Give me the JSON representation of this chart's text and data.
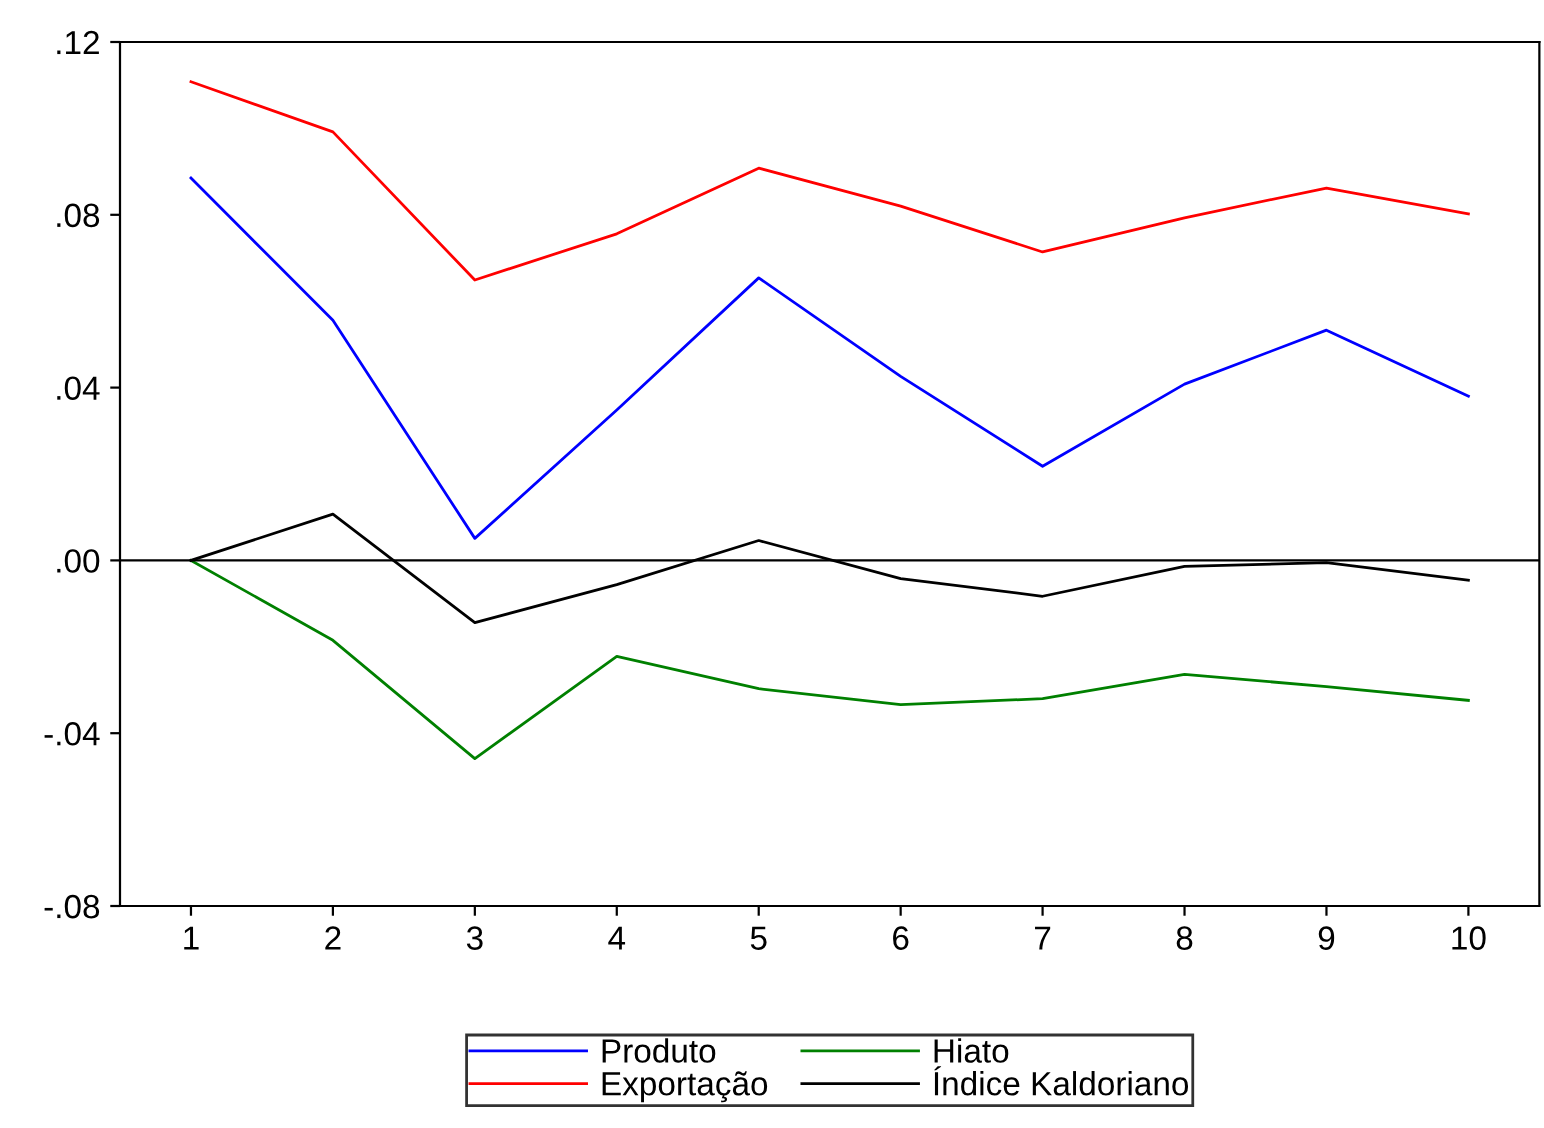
{
  "chart_data": {
    "type": "line",
    "x": [
      1,
      2,
      3,
      4,
      5,
      6,
      7,
      8,
      9,
      10
    ],
    "series": [
      {
        "name": "Produto",
        "color": "#0000ff",
        "values": [
          0.0885,
          0.0556,
          0.0051,
          0.0348,
          0.0654,
          0.0426,
          0.0218,
          0.0408,
          0.0533,
          0.038
        ]
      },
      {
        "name": "Exportação",
        "color": "#ff0000",
        "values": [
          0.1108,
          0.0992,
          0.0649,
          0.0756,
          0.0908,
          0.082,
          0.0714,
          0.0793,
          0.0862,
          0.0802
        ]
      },
      {
        "name": "Hiato",
        "color": "#008000",
        "values": [
          0.0,
          -0.0185,
          -0.0459,
          -0.0222,
          -0.0297,
          -0.0334,
          -0.032,
          -0.0264,
          -0.0292,
          -0.0324
        ]
      },
      {
        "name": "Índice Kaldoriano",
        "color": "#000000",
        "values": [
          0.0,
          0.0107,
          -0.0144,
          -0.0056,
          0.0046,
          -0.0042,
          -0.0083,
          -0.0014,
          -0.0005,
          -0.0046
        ]
      }
    ],
    "xlim": [
      0.5,
      10.5
    ],
    "xticks": [
      1,
      2,
      3,
      4,
      5,
      6,
      7,
      8,
      9,
      10
    ],
    "ylim": [
      -0.08,
      0.12
    ],
    "yticks": [
      {
        "value": -0.08,
        "label": "-.08"
      },
      {
        "value": -0.04,
        "label": "-.04"
      },
      {
        "value": 0,
        "label": ".00"
      },
      {
        "value": 0.04,
        "label": ".04"
      },
      {
        "value": 0.08,
        "label": ".08"
      },
      {
        "value": 0.12,
        "label": ".12"
      }
    ],
    "ref_lines": [
      {
        "axis": "y",
        "value": 0,
        "color": "#000000"
      }
    ],
    "grid": false,
    "legend": "bottom",
    "line_style": "solid",
    "marker": "none"
  }
}
